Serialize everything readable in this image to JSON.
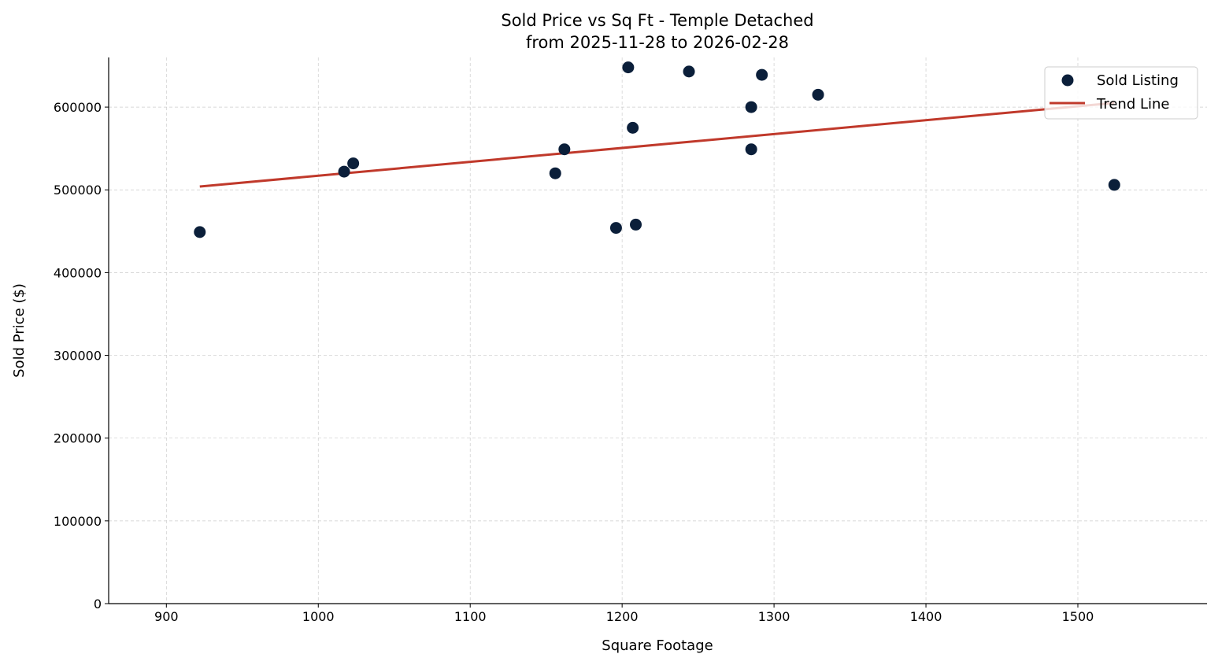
{
  "chart_data": {
    "type": "scatter",
    "title": "Sold Price vs Sq Ft - Temple Detached",
    "subtitle": "from 2025-11-28 to 2026-02-28",
    "xlabel": "Square Footage",
    "ylabel": "Sold Price ($)",
    "xlim": [
      862,
      1585
    ],
    "ylim": [
      0,
      660000
    ],
    "xticks": [
      900,
      1000,
      1100,
      1200,
      1300,
      1400,
      1500
    ],
    "yticks": [
      0,
      100000,
      200000,
      300000,
      400000,
      500000,
      600000
    ],
    "grid": true,
    "legend_placement": "top-right",
    "colors": {
      "points": "#0b1f3a",
      "trend": "#c0392b"
    },
    "series": [
      {
        "name": "Sold Listing",
        "type": "scatter",
        "points": [
          [
            922,
            449000
          ],
          [
            1017,
            522000
          ],
          [
            1023,
            532000
          ],
          [
            1156,
            520000
          ],
          [
            1162,
            549000
          ],
          [
            1196,
            454000
          ],
          [
            1204,
            648000
          ],
          [
            1207,
            575000
          ],
          [
            1209,
            458000
          ],
          [
            1244,
            643000
          ],
          [
            1285,
            600000
          ],
          [
            1285,
            549000
          ],
          [
            1292,
            639000
          ],
          [
            1329,
            615000
          ],
          [
            1524,
            506000
          ]
        ]
      },
      {
        "name": "Trend Line",
        "type": "line",
        "points": [
          [
            922,
            504000
          ],
          [
            1524,
            605000
          ]
        ]
      }
    ]
  }
}
